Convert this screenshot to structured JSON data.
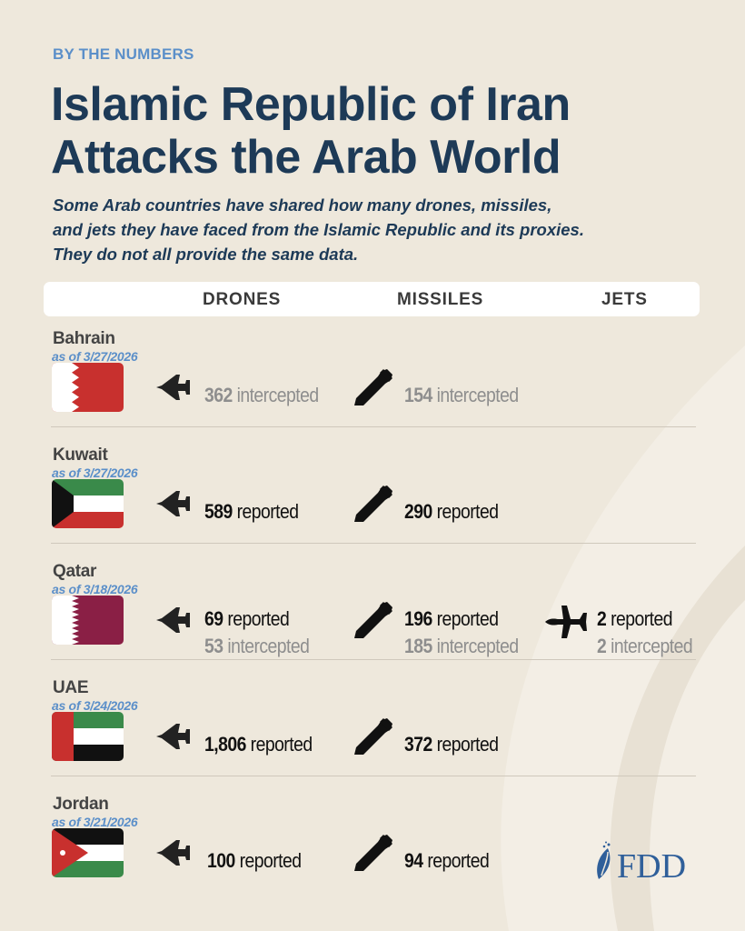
{
  "kicker": "BY THE NUMBERS",
  "title": [
    "Islamic Republic of Iran",
    "Attacks the Arab World"
  ],
  "subtitle": [
    "Some Arab countries have shared how many drones, missiles,",
    "and jets they have faced from the Islamic Republic and its proxies.",
    "They do not all provide the same data."
  ],
  "columns": {
    "drones": "DRONES",
    "missiles": "MISSILES",
    "jets": "JETS"
  },
  "icons": {
    "drones": "drone-icon",
    "missiles": "missile-icon",
    "jets": "fighter-jet-icon"
  },
  "colors": {
    "title": "#1d3a57",
    "accent": "#5b8fc9",
    "background": "#eee8dc",
    "intercepted_text": "#8e8e8e"
  },
  "countries": [
    {
      "name": "Bahrain",
      "date": "as of 3/27/2026",
      "flag": "bahrain",
      "drones": [
        {
          "num": "362",
          "label": "intercepted",
          "grey": true
        }
      ],
      "missiles": [
        {
          "num": "154",
          "label": "intercepted",
          "grey": true
        }
      ],
      "jets": []
    },
    {
      "name": "Kuwait",
      "date": "as of 3/27/2026",
      "flag": "kuwait",
      "drones": [
        {
          "num": "589",
          "label": "reported"
        }
      ],
      "missiles": [
        {
          "num": "290",
          "label": "reported"
        }
      ],
      "jets": []
    },
    {
      "name": "Qatar",
      "date": "as of 3/18/2026",
      "flag": "qatar",
      "drones": [
        {
          "num": "69",
          "label": "reported"
        },
        {
          "num": "53",
          "label": "intercepted",
          "grey": true
        }
      ],
      "missiles": [
        {
          "num": "196",
          "label": "reported"
        },
        {
          "num": "185",
          "label": "intercepted",
          "grey": true
        }
      ],
      "jets": [
        {
          "num": "2",
          "label": "reported"
        },
        {
          "num": "2",
          "label": "intercepted",
          "grey": true
        }
      ]
    },
    {
      "name": "UAE",
      "date": "as of 3/24/2026",
      "flag": "uae",
      "drones": [
        {
          "num": "1,806",
          "label": "reported"
        }
      ],
      "missiles": [
        {
          "num": "372",
          "label": "reported"
        }
      ],
      "jets": []
    },
    {
      "name": "Jordan",
      "date": "as of 3/21/2026",
      "flag": "jordan",
      "drones": [
        {
          "num": "100",
          "label": "reported"
        }
      ],
      "missiles": [
        {
          "num": "94",
          "label": "reported"
        }
      ],
      "jets": []
    }
  ],
  "logo": "FDD"
}
